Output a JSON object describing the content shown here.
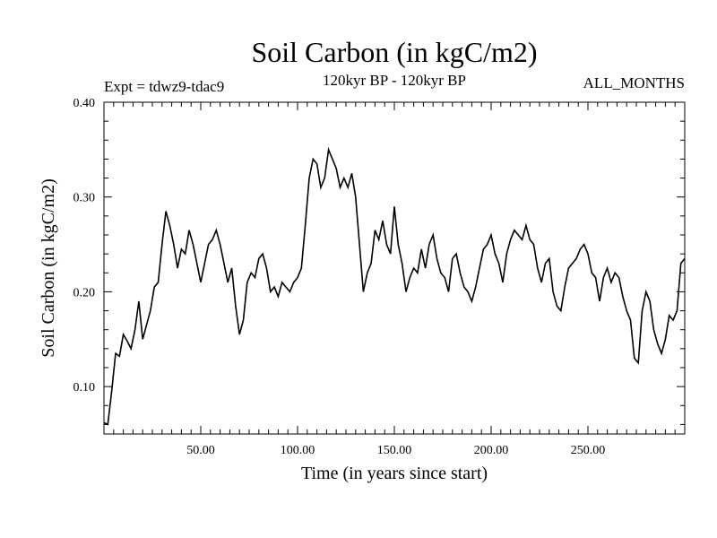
{
  "header": {
    "title": "Soil Carbon (in kgC/m2)",
    "expt": "Expt = tdwz9-tdac9",
    "period": "120kyr BP - 120kyr BP",
    "months": "ALL_MONTHS"
  },
  "chart_data": {
    "type": "line",
    "title": "Soil Carbon (in kgC/m2)",
    "xlabel": "Time (in years since start)",
    "ylabel": "Soil Carbon (in kgC/m2)",
    "xlim": [
      0,
      300
    ],
    "ylim": [
      0.05,
      0.4
    ],
    "x_ticks": [
      50,
      100,
      150,
      200,
      250
    ],
    "x_tick_labels": [
      "50.00",
      "100.00",
      "150.00",
      "200.00",
      "250.00"
    ],
    "y_ticks": [
      0.1,
      0.2,
      0.3,
      0.4
    ],
    "y_tick_labels": [
      "0.10",
      "0.20",
      "0.30",
      "0.40"
    ],
    "grid": false,
    "line_color": "#000000",
    "series": [
      {
        "x": [
          0,
          2,
          4,
          6,
          8,
          10,
          12,
          14,
          16,
          18,
          20,
          22,
          24,
          26,
          28,
          30,
          32,
          34,
          36,
          38,
          40,
          42,
          44,
          46,
          48,
          50,
          52,
          54,
          56,
          58,
          60,
          62,
          64,
          66,
          68,
          70,
          72,
          74,
          76,
          78,
          80,
          82,
          84,
          86,
          88,
          90,
          92,
          94,
          96,
          98,
          100,
          102,
          104,
          106,
          108,
          110,
          112,
          114,
          116,
          118,
          120,
          122,
          124,
          126,
          128,
          130,
          132,
          134,
          136,
          138,
          140,
          142,
          144,
          146,
          148,
          150,
          152,
          154,
          156,
          158,
          160,
          162,
          164,
          166,
          168,
          170,
          172,
          174,
          176,
          178,
          180,
          182,
          184,
          186,
          188,
          190,
          192,
          194,
          196,
          198,
          200,
          202,
          204,
          206,
          208,
          210,
          212,
          214,
          216,
          218,
          220,
          222,
          224,
          226,
          228,
          230,
          232,
          234,
          236,
          238,
          240,
          242,
          244,
          246,
          248,
          250,
          252,
          254,
          256,
          258,
          260,
          262,
          264,
          266,
          268,
          270,
          272,
          274,
          276,
          278,
          280,
          282,
          284,
          286,
          288,
          290,
          292,
          294,
          296,
          298,
          300
        ],
        "y": [
          0.062,
          0.06,
          0.095,
          0.135,
          0.132,
          0.155,
          0.148,
          0.14,
          0.16,
          0.19,
          0.15,
          0.165,
          0.18,
          0.205,
          0.21,
          0.25,
          0.285,
          0.27,
          0.25,
          0.225,
          0.245,
          0.24,
          0.265,
          0.25,
          0.23,
          0.21,
          0.23,
          0.25,
          0.255,
          0.265,
          0.25,
          0.23,
          0.21,
          0.225,
          0.185,
          0.155,
          0.17,
          0.21,
          0.22,
          0.215,
          0.235,
          0.24,
          0.225,
          0.2,
          0.205,
          0.195,
          0.21,
          0.205,
          0.2,
          0.21,
          0.215,
          0.225,
          0.27,
          0.32,
          0.34,
          0.335,
          0.31,
          0.32,
          0.35,
          0.34,
          0.33,
          0.31,
          0.32,
          0.31,
          0.325,
          0.3,
          0.25,
          0.2,
          0.22,
          0.23,
          0.265,
          0.255,
          0.275,
          0.25,
          0.24,
          0.29,
          0.25,
          0.23,
          0.2,
          0.215,
          0.225,
          0.22,
          0.245,
          0.225,
          0.25,
          0.26,
          0.235,
          0.22,
          0.215,
          0.2,
          0.235,
          0.24,
          0.22,
          0.205,
          0.2,
          0.19,
          0.205,
          0.225,
          0.245,
          0.25,
          0.26,
          0.24,
          0.23,
          0.21,
          0.24,
          0.255,
          0.265,
          0.26,
          0.255,
          0.27,
          0.255,
          0.25,
          0.225,
          0.21,
          0.23,
          0.235,
          0.2,
          0.185,
          0.18,
          0.205,
          0.225,
          0.23,
          0.235,
          0.245,
          0.25,
          0.24,
          0.22,
          0.215,
          0.19,
          0.215,
          0.225,
          0.21,
          0.22,
          0.215,
          0.195,
          0.18,
          0.17,
          0.13,
          0.125,
          0.18,
          0.2,
          0.19,
          0.16,
          0.145,
          0.135,
          0.15,
          0.175,
          0.17,
          0.18,
          0.23,
          0.235
        ]
      }
    ]
  }
}
